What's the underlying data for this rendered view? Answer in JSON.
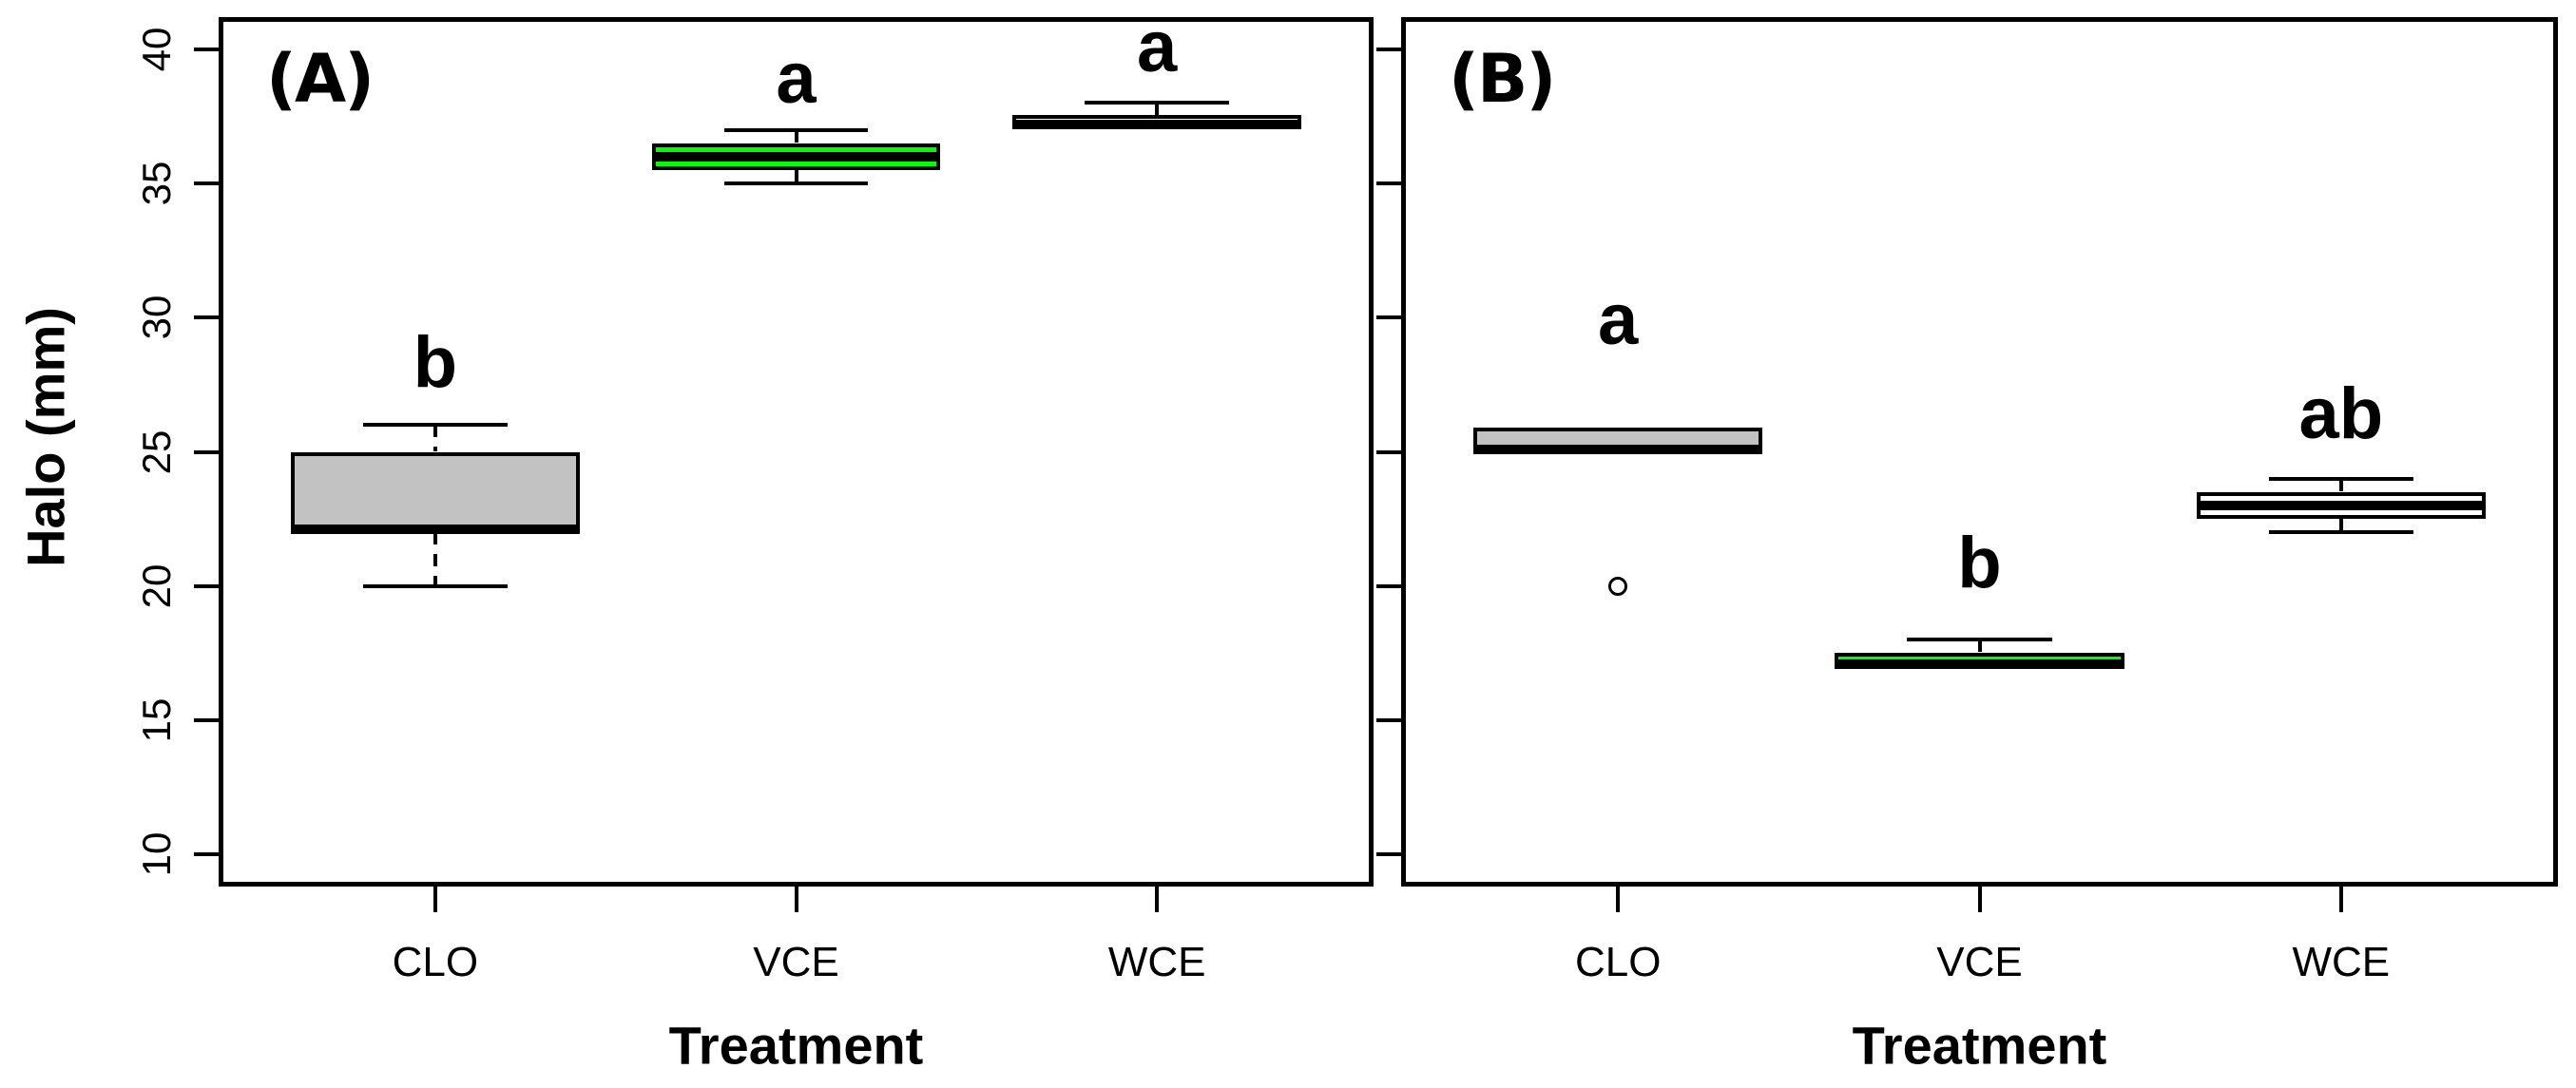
{
  "figure": {
    "background": "#FFFFFF",
    "axis_color": "#000000"
  },
  "chart_data": {
    "type": "boxplot",
    "title": "",
    "ylabel": "Halo (mm)",
    "xlabel": "Treatment",
    "categories": [
      "CLO",
      "VCE",
      "WCE"
    ],
    "y_ticks": [
      10,
      15,
      20,
      25,
      30,
      35,
      40
    ],
    "ylim": [
      8.8,
      41.2
    ],
    "grid": "off",
    "panels": [
      {
        "panel_label": "(A)",
        "show_y_tick_labels": true,
        "groups": [
          {
            "category": "CLO",
            "fill": "#C2C2C2",
            "whisker_low": 20,
            "q1": 22,
            "median": 22.1,
            "q3": 25,
            "whisker_high": 26,
            "outliers": [],
            "sig_letter": "b",
            "sig_y": 28.3
          },
          {
            "category": "VCE",
            "fill": "#00FF00",
            "whisker_low": 35,
            "q1": 35.5,
            "median": 36,
            "q3": 36.5,
            "whisker_high": 37,
            "outliers": [],
            "sig_letter": "a",
            "sig_y": 38.9
          },
          {
            "category": "WCE",
            "fill": "#FFFFFF",
            "whisker_low": 37.1,
            "q1": 37.1,
            "median": 37.2,
            "q3": 37.55,
            "whisker_high": 38,
            "outliers": [],
            "sig_letter": "a",
            "sig_y": 40.05
          }
        ]
      },
      {
        "panel_label": "(B)",
        "show_y_tick_labels": false,
        "groups": [
          {
            "category": "CLO",
            "fill": "#C2C2C2",
            "whisker_low": 25,
            "q1": 25,
            "median": 25.1,
            "q3": 25.9,
            "whisker_high": 25.9,
            "outliers": [
              20
            ],
            "sig_letter": "a",
            "sig_y": 29.9
          },
          {
            "category": "VCE",
            "fill": "#00FF00",
            "whisker_low": 17,
            "q1": 17,
            "median": 17.1,
            "q3": 17.5,
            "whisker_high": 18,
            "outliers": [],
            "sig_letter": "b",
            "sig_y": 20.85
          },
          {
            "category": "WCE",
            "fill": "#FFFFFF",
            "whisker_low": 22,
            "q1": 22.5,
            "median": 23,
            "q3": 23.5,
            "whisker_high": 24,
            "outliers": [],
            "sig_letter": "ab",
            "sig_y": 26.4
          }
        ]
      }
    ]
  }
}
